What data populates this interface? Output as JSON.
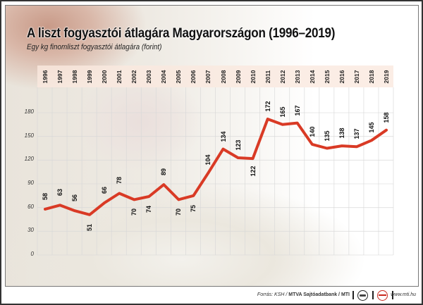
{
  "header": {
    "title": "A liszt fogyasztói átlagára Magyarországon (1996–2019)",
    "subtitle": "Egy kg finomliszt fogyasztói átlagára (forint)"
  },
  "footer": {
    "source_prefix": "Forrás: KSH / ",
    "source_bold": "MTVA Sajtóadatbank / MTI",
    "logo1_icon": "mtva-logo-icon",
    "logo2_icon": "mti-logo-icon",
    "website": "www.mti.hu"
  },
  "colors": {
    "line": "#d93a25",
    "grid": "#d8d8d8",
    "year_band": "#fae8de"
  },
  "chart_data": {
    "type": "line",
    "title": "A liszt fogyasztói átlagára Magyarországon (1996–2019)",
    "subtitle": "Egy kg finomliszt fogyasztói átlagára (forint)",
    "xlabel": "",
    "ylabel": "forint",
    "categories": [
      "1996",
      "1997",
      "1998",
      "1999",
      "2000",
      "2001",
      "2002",
      "2003",
      "2004",
      "2005",
      "2006",
      "2007",
      "2008",
      "2009",
      "2010",
      "2011",
      "2012",
      "2013",
      "2014",
      "2015",
      "2016",
      "2017",
      "2018",
      "2019"
    ],
    "series": [
      {
        "name": "Egy kg finomliszt fogyasztói átlagára (forint)",
        "values": [
          58,
          63,
          56,
          51,
          66,
          78,
          70,
          74,
          89,
          70,
          75,
          104,
          134,
          123,
          122,
          172,
          165,
          167,
          140,
          135,
          138,
          137,
          145,
          158
        ]
      }
    ],
    "yticks": [
      "0",
      "30",
      "60",
      "90",
      "120",
      "150",
      "180"
    ],
    "ylim": [
      0,
      180
    ],
    "grid": true,
    "legend": "none",
    "x_axis_position": "top",
    "label_positions": [
      "above",
      "above",
      "above",
      "below",
      "above",
      "above",
      "below",
      "below",
      "above",
      "below",
      "below",
      "above",
      "above",
      "above",
      "below",
      "above",
      "above",
      "above",
      "above",
      "above",
      "above",
      "above",
      "above",
      "above"
    ]
  }
}
